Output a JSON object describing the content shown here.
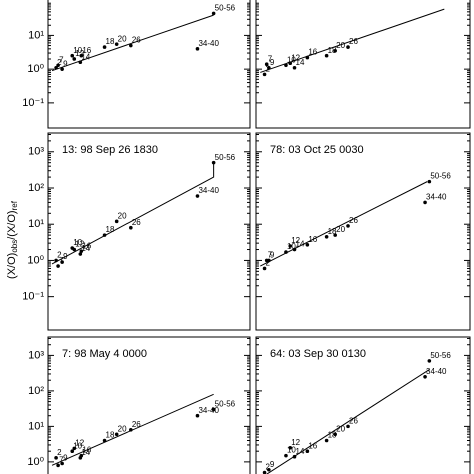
{
  "chart_data": [
    {
      "type": "scatter",
      "log_y": true,
      "xlim": [
        0,
        100
      ],
      "ylim": [
        0.018,
        120
      ],
      "tick_labels": true,
      "yticks": [
        {
          "value": 10,
          "label": "10¹"
        },
        {
          "value": 1,
          "label": "10⁰"
        },
        {
          "value": 0.1,
          "label": "10⁻¹"
        }
      ],
      "point_labels": [
        "2",
        "7",
        "9",
        "10",
        "12",
        "14",
        "16",
        "18",
        "20",
        "26",
        "34-40",
        "50-56"
      ],
      "x": [
        4,
        5,
        7,
        12,
        13,
        16,
        16.5,
        28,
        34,
        41,
        74,
        82
      ],
      "values": [
        1.1,
        1.3,
        1.0,
        2.5,
        2.0,
        1.6,
        2.5,
        4.5,
        5.5,
        5.0,
        4,
        45
      ],
      "fit": {
        "x": [
          2,
          82
        ],
        "values": [
          0.9,
          40
        ]
      }
    },
    {
      "type": "scatter",
      "log_y": true,
      "xlim": [
        0,
        100
      ],
      "ylim": [
        0.018,
        120
      ],
      "tick_labels": false,
      "yticks": [
        10,
        1,
        0.1
      ],
      "point_labels": [
        "2",
        "7",
        "9",
        "10",
        "12",
        "14",
        "16",
        "18",
        "20",
        "26"
      ],
      "x": [
        4,
        5,
        6,
        14,
        16,
        18,
        24,
        33,
        37,
        43
      ],
      "values": [
        0.7,
        1.4,
        1.1,
        1.3,
        1.5,
        1.1,
        2.2,
        2.5,
        3.5,
        4.5
      ],
      "fit": {
        "x": [
          2,
          88
        ],
        "values": [
          0.8,
          60
        ]
      }
    },
    {
      "type": "scatter",
      "log_y": true,
      "xlim": [
        0,
        100
      ],
      "ylim": [
        0.012,
        3300
      ],
      "tick_labels": true,
      "title": "13: 98 Sep 26 1830",
      "ylabel_parts": [
        "(X/O)",
        "obs",
        "/(X/O)",
        "ref"
      ],
      "yticks": [
        {
          "value": 1000,
          "label": "10³"
        },
        {
          "value": 100,
          "label": "10²"
        },
        {
          "value": 10,
          "label": "10¹"
        },
        {
          "value": 1,
          "label": "10⁰"
        },
        {
          "value": 0.1,
          "label": "10⁻¹"
        }
      ],
      "point_labels": [
        "2",
        "7",
        "9",
        "10",
        "12",
        "14",
        "16",
        "18",
        "20",
        "26",
        "34-40",
        "50-56"
      ],
      "x": [
        4,
        5,
        7,
        12,
        13,
        16,
        16.5,
        28,
        34,
        41,
        74,
        82
      ],
      "values": [
        1.0,
        0.7,
        0.9,
        2.2,
        2.0,
        1.5,
        1.8,
        5,
        12,
        8,
        60,
        500
      ],
      "fit": {
        "x": [
          2,
          82,
          82
        ],
        "values": [
          0.8,
          200,
          500
        ]
      }
    },
    {
      "type": "scatter",
      "log_y": true,
      "xlim": [
        0,
        100
      ],
      "ylim": [
        0.012,
        3300
      ],
      "tick_labels": false,
      "title": "78: 03 Oct 25 0030",
      "yticks": [
        1000,
        100,
        10,
        1,
        0.1
      ],
      "point_labels": [
        "2",
        "7",
        "9",
        "10",
        "12",
        "14",
        "16",
        "18",
        "20",
        "26",
        "34-40",
        "50-56"
      ],
      "x": [
        4,
        5,
        6,
        14,
        16,
        18,
        24,
        33,
        37,
        43,
        79,
        81
      ],
      "values": [
        0.6,
        1.0,
        1.0,
        1.7,
        2.5,
        2.0,
        2.7,
        4.5,
        5,
        9,
        40,
        150
      ],
      "fit": {
        "x": [
          2,
          80
        ],
        "values": [
          0.7,
          150
        ]
      }
    },
    {
      "type": "scatter",
      "log_y": true,
      "xlim": [
        0,
        100
      ],
      "ylim": [
        0.4,
        3300
      ],
      "tick_labels": true,
      "title": "7: 98 May  4 0000",
      "yticks": [
        {
          "value": 1000,
          "label": "10³"
        },
        {
          "value": 100,
          "label": "10²"
        },
        {
          "value": 10,
          "label": "10¹"
        },
        {
          "value": 1,
          "label": "10⁰"
        }
      ],
      "point_labels": [
        "2",
        "7",
        "9",
        "10",
        "12",
        "14",
        "16",
        "18",
        "20",
        "26",
        "34-40",
        "50-56"
      ],
      "x": [
        4,
        5,
        7,
        12,
        13,
        16,
        16.5,
        28,
        34,
        41,
        74,
        82
      ],
      "values": [
        1.3,
        0.8,
        0.9,
        2.0,
        2.4,
        1.3,
        1.5,
        4,
        6,
        8,
        20,
        30
      ],
      "fit": {
        "x": [
          2,
          82
        ],
        "values": [
          0.8,
          80
        ]
      }
    },
    {
      "type": "scatter",
      "log_y": true,
      "xlim": [
        0,
        100
      ],
      "ylim": [
        0.4,
        3300
      ],
      "tick_labels": false,
      "title": "64: 03 Sep 30 0130",
      "yticks": [
        1000,
        100,
        10,
        1
      ],
      "point_labels": [
        "2",
        "9",
        "10",
        "12",
        "14",
        "16",
        "18",
        "20",
        "26",
        "34-40",
        "50-56"
      ],
      "x": [
        4,
        6,
        14,
        16,
        18,
        24,
        33,
        37,
        43,
        79,
        81
      ],
      "values": [
        0.5,
        0.6,
        1.5,
        2.5,
        1.4,
        2,
        4,
        6,
        10,
        250,
        700
      ],
      "fit": {
        "x": [
          5,
          81
        ],
        "values": [
          0.45,
          400
        ]
      }
    }
  ]
}
